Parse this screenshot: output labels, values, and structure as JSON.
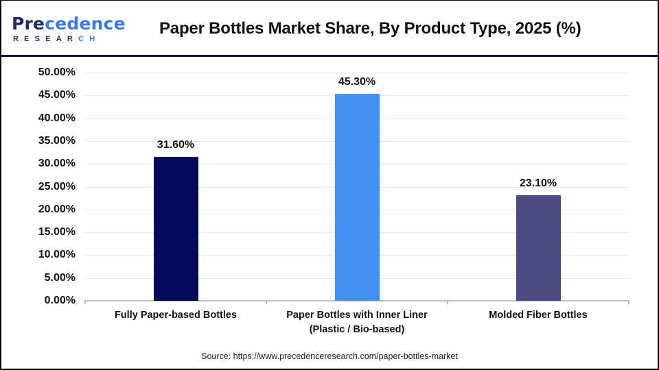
{
  "header": {
    "logo_main_prefix": "Pre",
    "logo_main_rest": "cedence",
    "logo_sub_main": "RESEAR",
    "logo_sub_accent": "CH",
    "title": "Paper Bottles Market Share, By Product Type, 2025 (%)"
  },
  "colors": {
    "header_rule": "#0b0f3a",
    "bar_1": "#030a57",
    "bar_2": "#4590ef",
    "bar_3": "#4b4c84",
    "grid": "#e6e6e6",
    "axis": "#bdbdbd"
  },
  "chart_data": {
    "type": "bar",
    "title": "Paper Bottles Market Share, By Product Type, 2025 (%)",
    "xlabel": "",
    "ylabel": "",
    "categories": [
      "Fully Paper-based Bottles",
      "Paper Bottles with Inner Liner (Plastic / Bio-based)",
      "Molded Fiber Bottles"
    ],
    "values": [
      31.6,
      45.3,
      23.1
    ],
    "value_labels": [
      "31.60%",
      "45.30%",
      "23.10%"
    ],
    "bar_colors": [
      "#030a57",
      "#4590ef",
      "#4b4c84"
    ],
    "ylim": [
      0,
      50
    ],
    "yticks": [
      "0.00%",
      "5.00%",
      "10.00%",
      "15.00%",
      "20.00%",
      "25.00%",
      "30.00%",
      "35.00%",
      "40.00%",
      "45.00%",
      "50.00%"
    ],
    "grid": true,
    "legend": false
  },
  "xaxis": {
    "labels": [
      {
        "line1": "Fully Paper-based Bottles",
        "line2": ""
      },
      {
        "line1": "Paper Bottles with Inner Liner",
        "line2": "(Plastic / Bio-based)"
      },
      {
        "line1": "Molded Fiber Bottles",
        "line2": ""
      }
    ]
  },
  "footer": {
    "source": "Source: https://www.precedenceresearch.com/paper-bottles-market"
  }
}
